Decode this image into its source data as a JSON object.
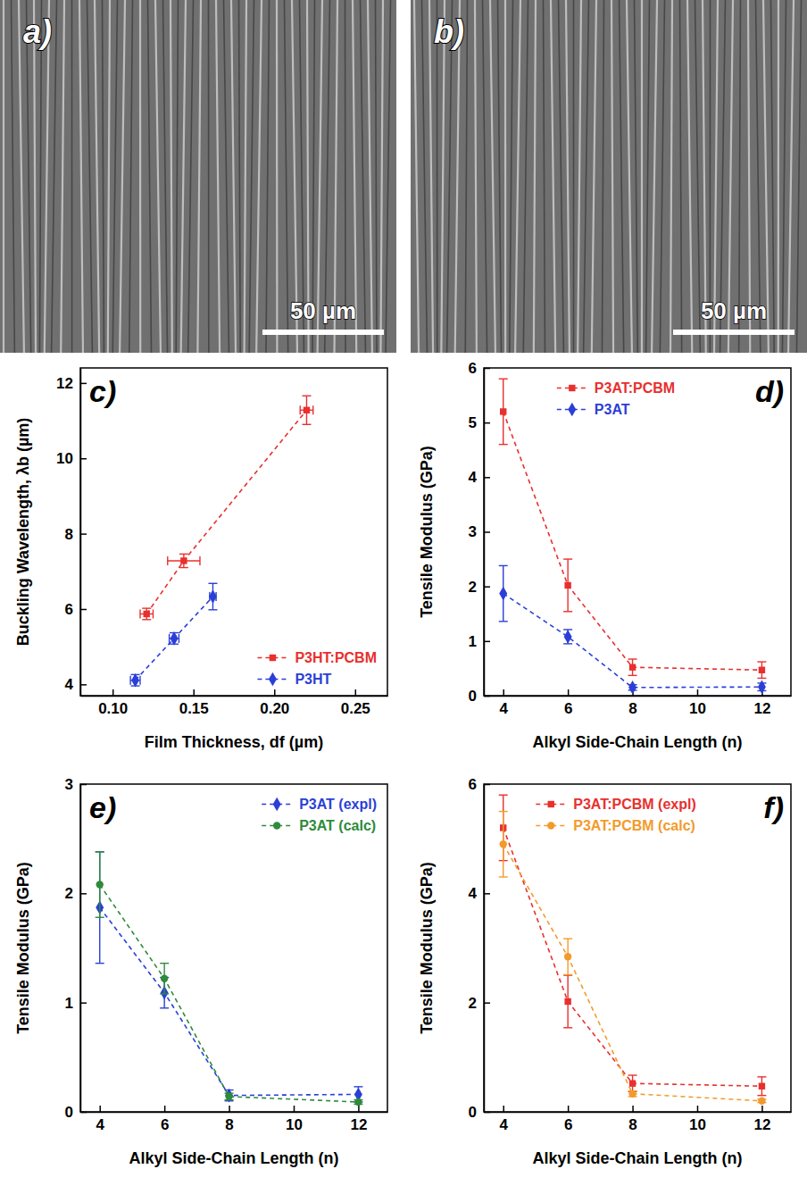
{
  "images": [
    {
      "label": "a)",
      "scale_bar": "50 µm"
    },
    {
      "label": "b)",
      "scale_bar": "50 µm"
    }
  ],
  "chart_data": [
    {
      "type": "line",
      "panel_label": "c)",
      "xlabel": "Film Thickness, df (µm)",
      "ylabel": "Buckling Wavelength, λb (µm)",
      "xlim": [
        0.08,
        0.27
      ],
      "xticks": [
        {
          "value": 0.1,
          "label": "0.10"
        },
        {
          "value": 0.15,
          "label": "0.15"
        },
        {
          "value": 0.2,
          "label": "0.20"
        },
        {
          "value": 0.25,
          "label": "0.25"
        }
      ],
      "ylim": [
        3.7,
        12.4
      ],
      "yticks": [
        4,
        6,
        8,
        10,
        12
      ],
      "legend": "lower right",
      "series": [
        {
          "name": "P3HT:PCBM",
          "color": "#e8302e",
          "marker": "square",
          "line_style": "dashed",
          "x": [
            0.121,
            0.144,
            0.22
          ],
          "x_errors": [
            0.004,
            0.01,
            0.004
          ],
          "values": [
            5.87,
            7.28,
            11.28
          ],
          "errors": [
            0.15,
            0.18,
            0.38
          ]
        },
        {
          "name": "P3HT",
          "color": "#2b3fd6",
          "marker": "diamond",
          "line_style": "dashed",
          "x": [
            0.114,
            0.138,
            0.162
          ],
          "x_errors": [
            0.003,
            0.003,
            0.002
          ],
          "values": [
            4.11,
            5.22,
            6.33
          ],
          "errors": [
            0.15,
            0.15,
            0.35
          ]
        }
      ]
    },
    {
      "type": "line",
      "panel_label": "d)",
      "xlabel": "Alkyl Side-Chain Length (n)",
      "ylabel": "Tensile Modulus (GPa)",
      "x": [
        4,
        6,
        8,
        12
      ],
      "xlim": [
        3.4,
        12.9
      ],
      "xticks": [
        4,
        6,
        8,
        10,
        12
      ],
      "ylim": [
        0,
        6
      ],
      "yticks": [
        0,
        1,
        2,
        3,
        4,
        5,
        6
      ],
      "legend": "upper center",
      "series": [
        {
          "name": "P3AT:PCBM",
          "color": "#e8302e",
          "marker": "square",
          "line_style": "dashed",
          "values": [
            5.2,
            2.02,
            0.52,
            0.47
          ],
          "errors": [
            0.6,
            0.48,
            0.15,
            0.15
          ]
        },
        {
          "name": "P3AT",
          "color": "#2b3fd6",
          "marker": "diamond",
          "line_style": "dashed",
          "values": [
            1.87,
            1.08,
            0.15,
            0.16
          ],
          "errors": [
            0.51,
            0.13,
            0.05,
            0.07
          ]
        }
      ]
    },
    {
      "type": "line",
      "panel_label": "e)",
      "xlabel": "Alkyl Side-Chain Length (n)",
      "ylabel": "Tensile Modulus (GPa)",
      "x": [
        4,
        6,
        8,
        12
      ],
      "xlim": [
        3.4,
        12.9
      ],
      "xticks": [
        4,
        6,
        8,
        10,
        12
      ],
      "ylim": [
        0,
        3
      ],
      "yticks": [
        0,
        1,
        2,
        3
      ],
      "legend": "upper right",
      "series": [
        {
          "name": "P3AT (expl)",
          "color": "#2b3fd6",
          "marker": "diamond",
          "line_style": "dashed",
          "values": [
            1.87,
            1.09,
            0.15,
            0.16
          ],
          "errors": [
            0.51,
            0.14,
            0.05,
            0.07
          ]
        },
        {
          "name": "P3AT (calc)",
          "color": "#2e8b3a",
          "marker": "circle",
          "line_style": "dashed",
          "values": [
            2.08,
            1.22,
            0.14,
            0.09
          ],
          "errors": [
            0.3,
            0.14,
            0.03,
            0.02
          ]
        }
      ]
    },
    {
      "type": "line",
      "panel_label": "f)",
      "xlabel": "Alkyl Side-Chain Length (n)",
      "ylabel": "Tensile Modulus (GPa)",
      "x": [
        4,
        6,
        8,
        12
      ],
      "xlim": [
        3.4,
        12.9
      ],
      "xticks": [
        4,
        6,
        8,
        10,
        12
      ],
      "ylim": [
        0,
        6
      ],
      "yticks": [
        0,
        2,
        4,
        6
      ],
      "legend": "upper center",
      "series": [
        {
          "name": "P3AT:PCBM (expl)",
          "color": "#e8302e",
          "marker": "square",
          "line_style": "dashed",
          "values": [
            5.2,
            2.02,
            0.52,
            0.47
          ],
          "errors": [
            0.6,
            0.48,
            0.15,
            0.17
          ]
        },
        {
          "name": "P3AT:PCBM (calc)",
          "color": "#f39a2c",
          "marker": "circle",
          "line_style": "dashed",
          "values": [
            4.9,
            2.84,
            0.33,
            0.2
          ],
          "errors": [
            0.6,
            0.33,
            0.05,
            0.03
          ]
        }
      ]
    }
  ]
}
